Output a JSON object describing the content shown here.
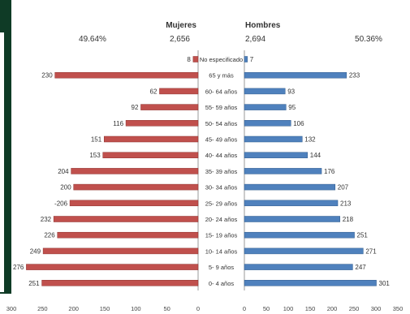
{
  "chart_data": {
    "type": "bar",
    "orientation": "population-pyramid",
    "left_series": {
      "name": "Mujeres",
      "total": "2,656",
      "percent": "49.64%",
      "color": "#c0504d"
    },
    "right_series": {
      "name": "Hombres",
      "total": "2,694",
      "percent": "50.36%",
      "color": "#4f81bd"
    },
    "categories": [
      "No especificado",
      "65 y más",
      "60- 64  años",
      "55- 59  años",
      "50- 54  años",
      "45- 49  años",
      "40- 44  años",
      "35- 39  años",
      "30- 34  años",
      "25- 29  años",
      "20- 24  años",
      "15- 19  años",
      "10- 14  años",
      "5- 9  años",
      "0- 4  años"
    ],
    "left_values": [
      8,
      230,
      62,
      92,
      116,
      151,
      153,
      204,
      200,
      206,
      232,
      226,
      249,
      276,
      251
    ],
    "left_labels": [
      "8",
      "230",
      "62",
      "92",
      "116",
      "151",
      "153",
      "204",
      "200",
      "-206",
      "232",
      "226",
      "249",
      "276",
      "251"
    ],
    "right_values": [
      7,
      233,
      93,
      95,
      106,
      132,
      144,
      176,
      207,
      213,
      218,
      251,
      271,
      247,
      301
    ],
    "left_ticks": [
      "300",
      "250",
      "200",
      "150",
      "100",
      "50",
      "0"
    ],
    "right_ticks": [
      "0",
      "50",
      "100",
      "150",
      "200",
      "250",
      "300",
      "350"
    ],
    "xlim_left": [
      0,
      300
    ],
    "xlim_right": [
      0,
      350
    ],
    "grid": false,
    "legend": "top"
  }
}
